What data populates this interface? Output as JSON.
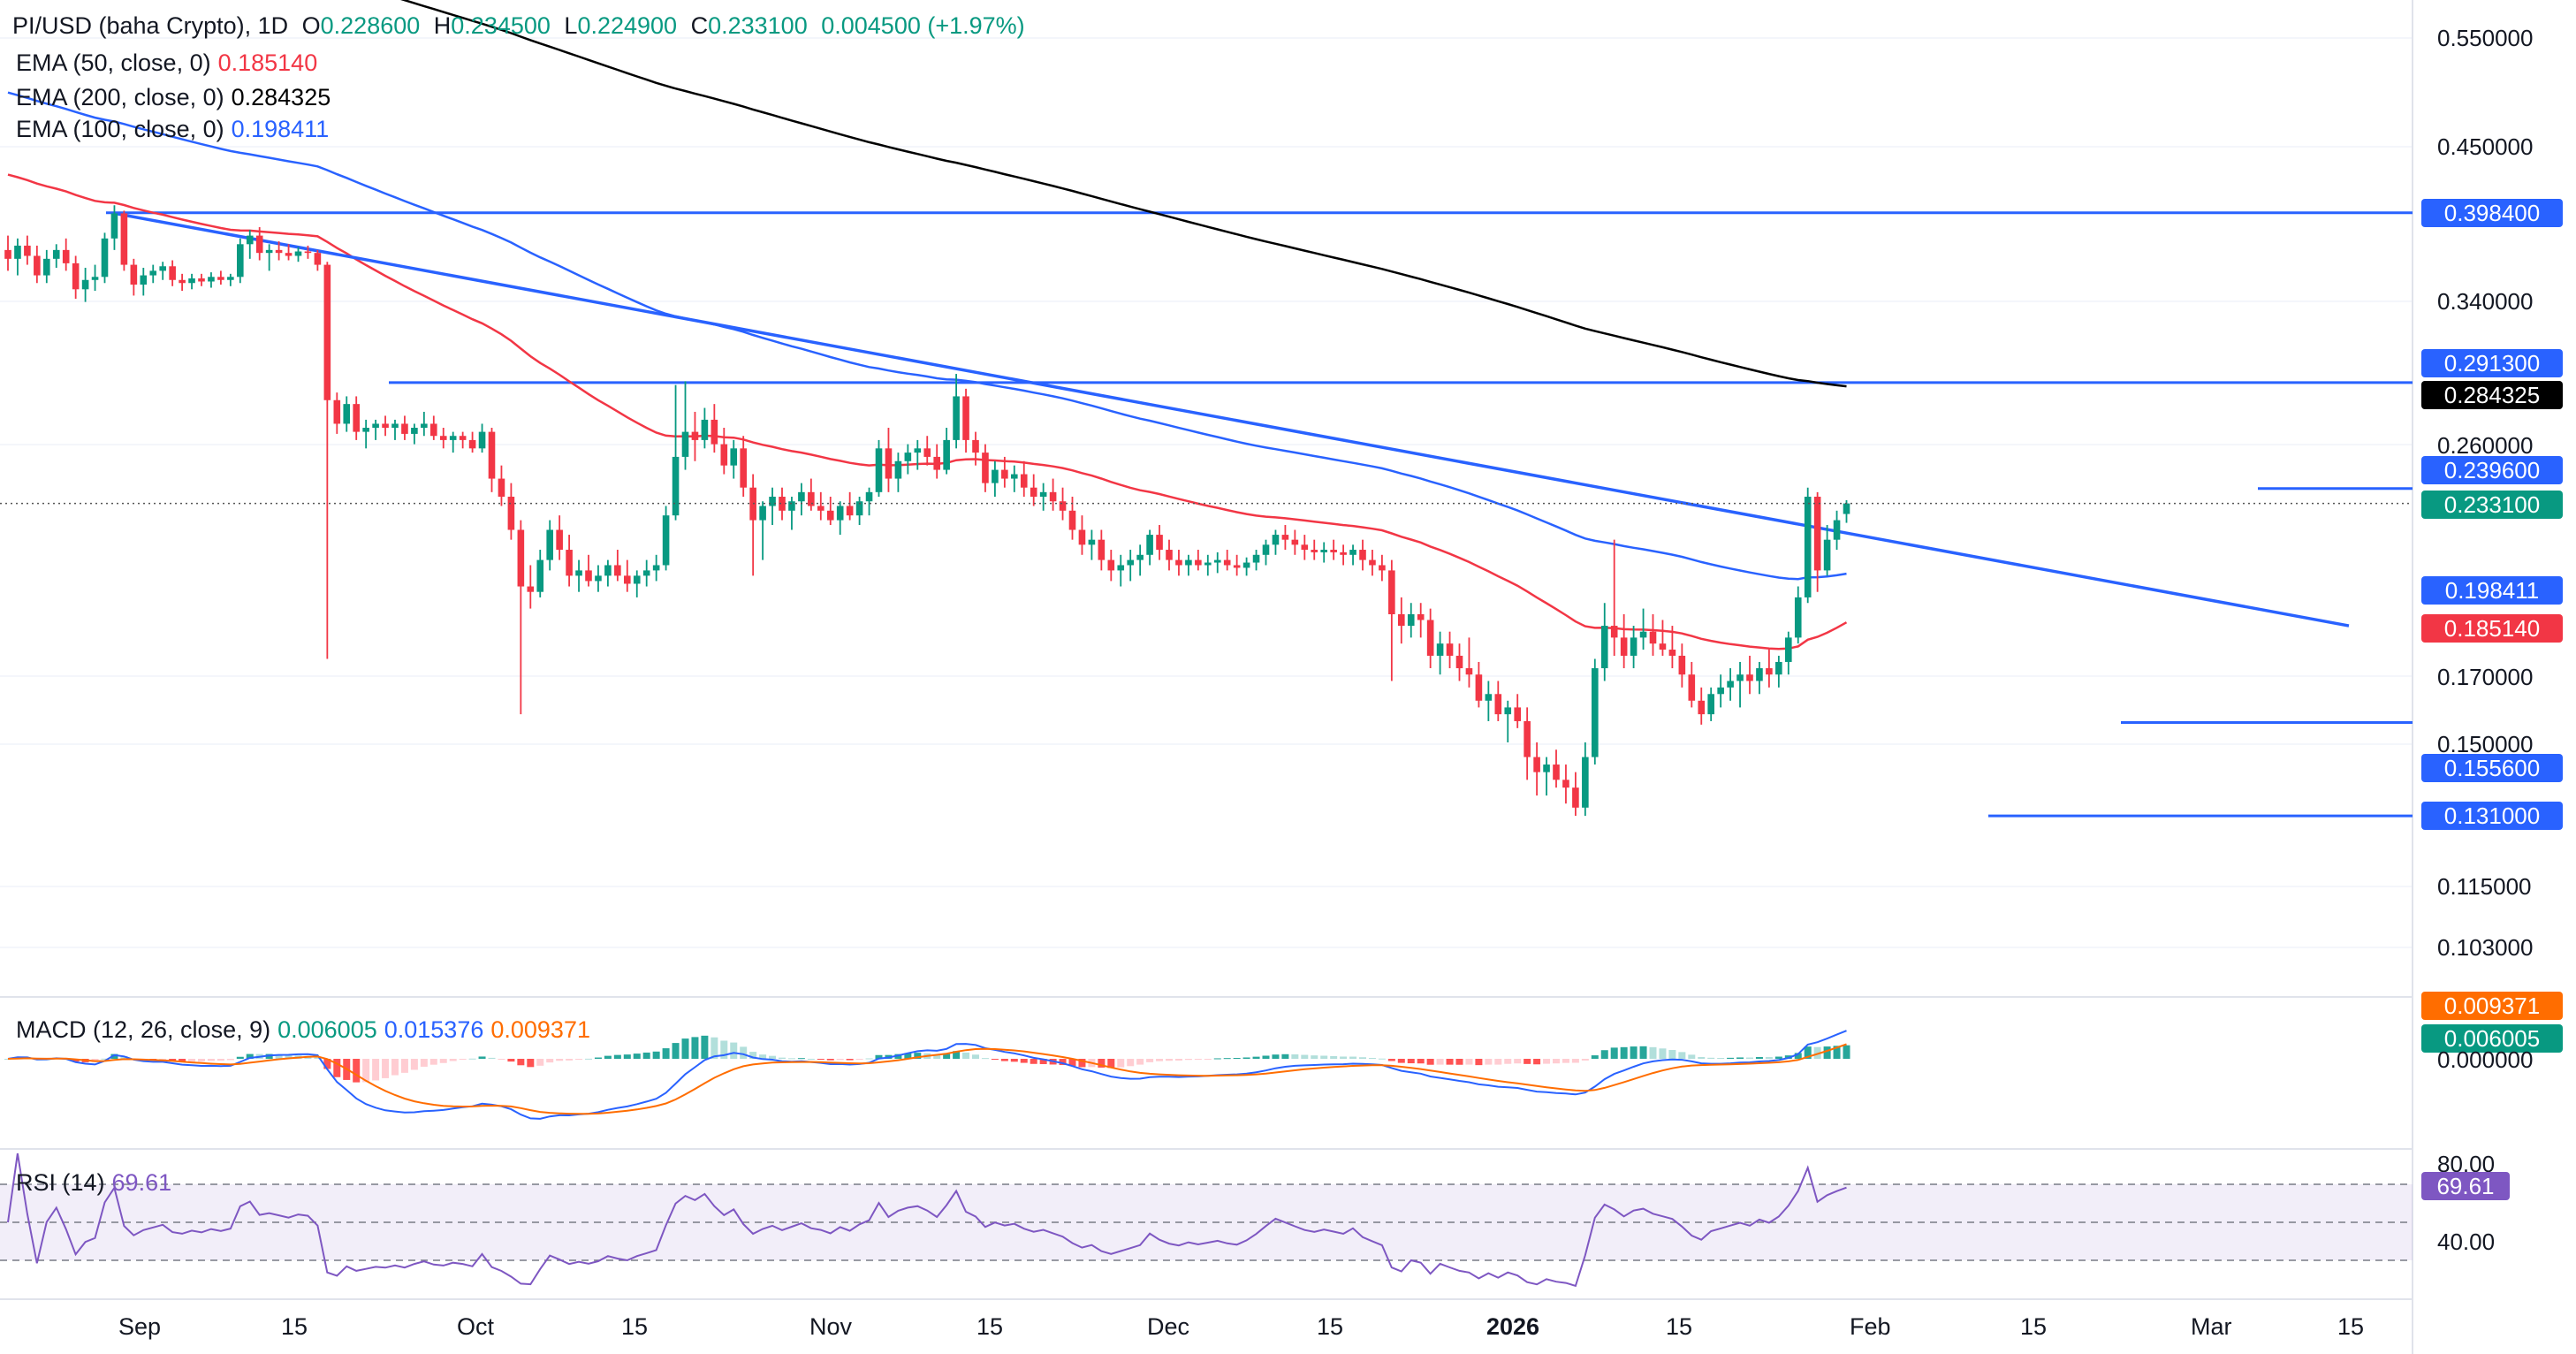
{
  "header": {
    "symbol": "PI/USD (baha Crypto), 1D",
    "open_label": "O",
    "open": "0.228600",
    "high_label": "H",
    "high": "0.234500",
    "low_label": "L",
    "low": "0.224900",
    "close_label": "C",
    "close": "0.233100",
    "change": "0.004500 (+1.97%)"
  },
  "legend": {
    "ema50": {
      "label": "EMA (50, close, 0)",
      "value": "0.185140",
      "color": "#f23645"
    },
    "ema200": {
      "label": "EMA (200, close, 0)",
      "value": "0.284325",
      "color": "#000000"
    },
    "ema100": {
      "label": "EMA (100, close, 0)",
      "value": "0.198411",
      "color": "#2962ff"
    },
    "macd": {
      "label": "MACD (12, 26, close, 9)",
      "hist": "0.006005",
      "macd": "0.015376",
      "signal": "0.009371"
    },
    "rsi": {
      "label": "RSI (14)",
      "value": "69.61"
    }
  },
  "colors": {
    "up": "#089981",
    "down": "#f23645",
    "level": "#2962ff",
    "ema50": "#f23645",
    "ema100": "#2962ff",
    "ema200": "#000000",
    "macd": "#2962ff",
    "signal": "#ff6d00",
    "rsi": "#7e57c2"
  },
  "price_axis": [
    "0.550000",
    "0.450000",
    "0.340000",
    "0.260000",
    "0.170000",
    "0.150000",
    "0.115000",
    "0.103000"
  ],
  "price_tags": {
    "r1": "0.398400",
    "r2": "0.291300",
    "ema200": "0.284325",
    "r3": "0.239600",
    "last": "0.233100",
    "ema100": "0.198411",
    "ema50": "0.185140",
    "s1": "0.155600",
    "s2": "0.131000"
  },
  "macd_axis": {
    "tag_signal": "0.009371",
    "tag_hist": "0.006005",
    "zero": "0.000000"
  },
  "rsi_axis": {
    "top": "80.00",
    "tag": "69.61",
    "bottom": "40.00"
  },
  "time_axis": {
    "labels": [
      "Sep",
      "15",
      "Oct",
      "15",
      "Nov",
      "15",
      "Dec",
      "15",
      "2026",
      "15",
      "Feb",
      "15",
      "Mar",
      "15"
    ],
    "bold_label": "2026"
  },
  "chart_data": {
    "type": "candlestick",
    "title": "PI/USD (baha Crypto), 1D",
    "scale": "log",
    "ylim": [
      0.095,
      0.58
    ],
    "x_range": [
      "2025-08-28",
      "2026-03-23"
    ],
    "candles_ohlc": [
      [
        0.372,
        0.382,
        0.358,
        0.366
      ],
      [
        0.366,
        0.38,
        0.355,
        0.375
      ],
      [
        0.375,
        0.382,
        0.362,
        0.368
      ],
      [
        0.368,
        0.375,
        0.35,
        0.355
      ],
      [
        0.355,
        0.372,
        0.35,
        0.366
      ],
      [
        0.366,
        0.376,
        0.36,
        0.372
      ],
      [
        0.372,
        0.38,
        0.358,
        0.363
      ],
      [
        0.363,
        0.368,
        0.34,
        0.346
      ],
      [
        0.346,
        0.36,
        0.338,
        0.352
      ],
      [
        0.352,
        0.362,
        0.345,
        0.354
      ],
      [
        0.354,
        0.384,
        0.35,
        0.38
      ],
      [
        0.38,
        0.404,
        0.372,
        0.398
      ],
      [
        0.398,
        0.4,
        0.358,
        0.362
      ],
      [
        0.362,
        0.366,
        0.342,
        0.349
      ],
      [
        0.349,
        0.36,
        0.342,
        0.355
      ],
      [
        0.355,
        0.362,
        0.35,
        0.358
      ],
      [
        0.358,
        0.364,
        0.352,
        0.361
      ],
      [
        0.361,
        0.365,
        0.348,
        0.352
      ],
      [
        0.352,
        0.356,
        0.345,
        0.35
      ],
      [
        0.35,
        0.356,
        0.346,
        0.353
      ],
      [
        0.353,
        0.356,
        0.348,
        0.351
      ],
      [
        0.351,
        0.357,
        0.347,
        0.354
      ],
      [
        0.354,
        0.358,
        0.349,
        0.352
      ],
      [
        0.352,
        0.356,
        0.348,
        0.354
      ],
      [
        0.354,
        0.38,
        0.35,
        0.376
      ],
      [
        0.376,
        0.386,
        0.366,
        0.382
      ],
      [
        0.382,
        0.388,
        0.365,
        0.37
      ],
      [
        0.37,
        0.376,
        0.358,
        0.372
      ],
      [
        0.372,
        0.378,
        0.365,
        0.37
      ],
      [
        0.37,
        0.376,
        0.365,
        0.368
      ],
      [
        0.368,
        0.374,
        0.364,
        0.371
      ],
      [
        0.371,
        0.375,
        0.366,
        0.37
      ],
      [
        0.37,
        0.372,
        0.358,
        0.362
      ],
      [
        0.362,
        0.364,
        0.175,
        0.282
      ],
      [
        0.282,
        0.286,
        0.265,
        0.27
      ],
      [
        0.27,
        0.284,
        0.266,
        0.28
      ],
      [
        0.28,
        0.284,
        0.262,
        0.266
      ],
      [
        0.266,
        0.272,
        0.258,
        0.268
      ],
      [
        0.268,
        0.272,
        0.262,
        0.27
      ],
      [
        0.27,
        0.274,
        0.264,
        0.268
      ],
      [
        0.268,
        0.272,
        0.262,
        0.27
      ],
      [
        0.27,
        0.274,
        0.262,
        0.265
      ],
      [
        0.265,
        0.27,
        0.26,
        0.268
      ],
      [
        0.268,
        0.276,
        0.264,
        0.27
      ],
      [
        0.27,
        0.274,
        0.262,
        0.264
      ],
      [
        0.264,
        0.268,
        0.258,
        0.262
      ],
      [
        0.262,
        0.266,
        0.256,
        0.264
      ],
      [
        0.264,
        0.266,
        0.258,
        0.262
      ],
      [
        0.262,
        0.266,
        0.256,
        0.258
      ],
      [
        0.258,
        0.27,
        0.256,
        0.266
      ],
      [
        0.266,
        0.268,
        0.238,
        0.244
      ],
      [
        0.244,
        0.25,
        0.232,
        0.236
      ],
      [
        0.236,
        0.242,
        0.218,
        0.222
      ],
      [
        0.222,
        0.226,
        0.158,
        0.2
      ],
      [
        0.2,
        0.208,
        0.192,
        0.198
      ],
      [
        0.198,
        0.214,
        0.196,
        0.21
      ],
      [
        0.21,
        0.226,
        0.206,
        0.222
      ],
      [
        0.222,
        0.228,
        0.21,
        0.214
      ],
      [
        0.214,
        0.22,
        0.2,
        0.204
      ],
      [
        0.204,
        0.21,
        0.198,
        0.206
      ],
      [
        0.206,
        0.212,
        0.2,
        0.202
      ],
      [
        0.202,
        0.208,
        0.198,
        0.204
      ],
      [
        0.204,
        0.21,
        0.2,
        0.208
      ],
      [
        0.208,
        0.214,
        0.202,
        0.204
      ],
      [
        0.204,
        0.21,
        0.198,
        0.201
      ],
      [
        0.201,
        0.206,
        0.196,
        0.204
      ],
      [
        0.204,
        0.21,
        0.2,
        0.206
      ],
      [
        0.206,
        0.212,
        0.202,
        0.208
      ],
      [
        0.208,
        0.232,
        0.206,
        0.228
      ],
      [
        0.228,
        0.29,
        0.226,
        0.254
      ],
      [
        0.254,
        0.292,
        0.248,
        0.266
      ],
      [
        0.266,
        0.276,
        0.252,
        0.262
      ],
      [
        0.262,
        0.278,
        0.258,
        0.272
      ],
      [
        0.272,
        0.28,
        0.256,
        0.26
      ],
      [
        0.26,
        0.268,
        0.246,
        0.25
      ],
      [
        0.25,
        0.262,
        0.244,
        0.258
      ],
      [
        0.258,
        0.264,
        0.236,
        0.24
      ],
      [
        0.24,
        0.246,
        0.204,
        0.226
      ],
      [
        0.226,
        0.234,
        0.21,
        0.232
      ],
      [
        0.232,
        0.24,
        0.224,
        0.236
      ],
      [
        0.236,
        0.24,
        0.226,
        0.23
      ],
      [
        0.23,
        0.236,
        0.222,
        0.234
      ],
      [
        0.234,
        0.242,
        0.228,
        0.238
      ],
      [
        0.238,
        0.244,
        0.23,
        0.232
      ],
      [
        0.232,
        0.238,
        0.226,
        0.23
      ],
      [
        0.23,
        0.236,
        0.224,
        0.226
      ],
      [
        0.226,
        0.234,
        0.22,
        0.232
      ],
      [
        0.232,
        0.238,
        0.226,
        0.228
      ],
      [
        0.228,
        0.236,
        0.224,
        0.234
      ],
      [
        0.234,
        0.24,
        0.228,
        0.238
      ],
      [
        0.238,
        0.262,
        0.236,
        0.258
      ],
      [
        0.258,
        0.268,
        0.238,
        0.244
      ],
      [
        0.244,
        0.256,
        0.238,
        0.252
      ],
      [
        0.252,
        0.26,
        0.246,
        0.256
      ],
      [
        0.256,
        0.262,
        0.248,
        0.258
      ],
      [
        0.258,
        0.264,
        0.25,
        0.254
      ],
      [
        0.254,
        0.26,
        0.244,
        0.248
      ],
      [
        0.248,
        0.268,
        0.246,
        0.262
      ],
      [
        0.262,
        0.296,
        0.258,
        0.284
      ],
      [
        0.284,
        0.288,
        0.256,
        0.262
      ],
      [
        0.262,
        0.266,
        0.25,
        0.256
      ],
      [
        0.256,
        0.26,
        0.238,
        0.242
      ],
      [
        0.242,
        0.252,
        0.236,
        0.248
      ],
      [
        0.248,
        0.254,
        0.24,
        0.244
      ],
      [
        0.244,
        0.25,
        0.238,
        0.246
      ],
      [
        0.246,
        0.252,
        0.236,
        0.24
      ],
      [
        0.24,
        0.246,
        0.232,
        0.236
      ],
      [
        0.236,
        0.242,
        0.23,
        0.238
      ],
      [
        0.238,
        0.244,
        0.23,
        0.234
      ],
      [
        0.234,
        0.24,
        0.226,
        0.23
      ],
      [
        0.23,
        0.236,
        0.218,
        0.222
      ],
      [
        0.222,
        0.228,
        0.212,
        0.216
      ],
      [
        0.216,
        0.222,
        0.21,
        0.218
      ],
      [
        0.218,
        0.222,
        0.206,
        0.21
      ],
      [
        0.21,
        0.214,
        0.202,
        0.206
      ],
      [
        0.206,
        0.212,
        0.2,
        0.208
      ],
      [
        0.208,
        0.214,
        0.202,
        0.21
      ],
      [
        0.21,
        0.216,
        0.204,
        0.212
      ],
      [
        0.212,
        0.222,
        0.208,
        0.22
      ],
      [
        0.22,
        0.224,
        0.21,
        0.214
      ],
      [
        0.214,
        0.218,
        0.206,
        0.21
      ],
      [
        0.21,
        0.214,
        0.204,
        0.208
      ],
      [
        0.208,
        0.212,
        0.204,
        0.21
      ],
      [
        0.21,
        0.214,
        0.206,
        0.208
      ],
      [
        0.208,
        0.212,
        0.204,
        0.209
      ],
      [
        0.209,
        0.213,
        0.205,
        0.21
      ],
      [
        0.21,
        0.214,
        0.206,
        0.208
      ],
      [
        0.208,
        0.212,
        0.204,
        0.207
      ],
      [
        0.207,
        0.211,
        0.204,
        0.209
      ],
      [
        0.209,
        0.214,
        0.206,
        0.212
      ],
      [
        0.212,
        0.218,
        0.208,
        0.216
      ],
      [
        0.216,
        0.222,
        0.212,
        0.22
      ],
      [
        0.22,
        0.224,
        0.214,
        0.218
      ],
      [
        0.218,
        0.222,
        0.212,
        0.216
      ],
      [
        0.216,
        0.22,
        0.21,
        0.214
      ],
      [
        0.214,
        0.218,
        0.21,
        0.213
      ],
      [
        0.213,
        0.217,
        0.209,
        0.214
      ],
      [
        0.214,
        0.218,
        0.21,
        0.213
      ],
      [
        0.213,
        0.216,
        0.208,
        0.212
      ],
      [
        0.212,
        0.216,
        0.208,
        0.214
      ],
      [
        0.214,
        0.218,
        0.206,
        0.21
      ],
      [
        0.21,
        0.214,
        0.204,
        0.208
      ],
      [
        0.208,
        0.212,
        0.202,
        0.206
      ],
      [
        0.206,
        0.21,
        0.168,
        0.19
      ],
      [
        0.19,
        0.196,
        0.18,
        0.186
      ],
      [
        0.186,
        0.194,
        0.182,
        0.19
      ],
      [
        0.19,
        0.194,
        0.182,
        0.188
      ],
      [
        0.188,
        0.192,
        0.172,
        0.176
      ],
      [
        0.176,
        0.184,
        0.17,
        0.18
      ],
      [
        0.18,
        0.184,
        0.172,
        0.176
      ],
      [
        0.176,
        0.18,
        0.168,
        0.172
      ],
      [
        0.172,
        0.182,
        0.166,
        0.17
      ],
      [
        0.17,
        0.174,
        0.16,
        0.162
      ],
      [
        0.162,
        0.168,
        0.156,
        0.164
      ],
      [
        0.164,
        0.168,
        0.156,
        0.158
      ],
      [
        0.158,
        0.162,
        0.15,
        0.16
      ],
      [
        0.16,
        0.164,
        0.154,
        0.156
      ],
      [
        0.156,
        0.16,
        0.14,
        0.146
      ],
      [
        0.146,
        0.15,
        0.136,
        0.142
      ],
      [
        0.142,
        0.146,
        0.136,
        0.144
      ],
      [
        0.144,
        0.148,
        0.138,
        0.14
      ],
      [
        0.14,
        0.144,
        0.134,
        0.138
      ],
      [
        0.138,
        0.142,
        0.131,
        0.133
      ],
      [
        0.133,
        0.15,
        0.131,
        0.146
      ],
      [
        0.146,
        0.175,
        0.144,
        0.172
      ],
      [
        0.172,
        0.194,
        0.168,
        0.186
      ],
      [
        0.186,
        0.218,
        0.176,
        0.182
      ],
      [
        0.182,
        0.19,
        0.172,
        0.176
      ],
      [
        0.176,
        0.186,
        0.172,
        0.182
      ],
      [
        0.182,
        0.192,
        0.178,
        0.184
      ],
      [
        0.184,
        0.19,
        0.176,
        0.18
      ],
      [
        0.18,
        0.188,
        0.176,
        0.178
      ],
      [
        0.178,
        0.186,
        0.172,
        0.176
      ],
      [
        0.176,
        0.18,
        0.166,
        0.17
      ],
      [
        0.17,
        0.174,
        0.16,
        0.162
      ],
      [
        0.162,
        0.166,
        0.155,
        0.158
      ],
      [
        0.158,
        0.166,
        0.156,
        0.164
      ],
      [
        0.164,
        0.17,
        0.16,
        0.166
      ],
      [
        0.166,
        0.172,
        0.162,
        0.168
      ],
      [
        0.168,
        0.174,
        0.16,
        0.17
      ],
      [
        0.17,
        0.176,
        0.164,
        0.168
      ],
      [
        0.168,
        0.174,
        0.164,
        0.172
      ],
      [
        0.172,
        0.178,
        0.166,
        0.17
      ],
      [
        0.17,
        0.176,
        0.166,
        0.174
      ],
      [
        0.174,
        0.184,
        0.17,
        0.182
      ],
      [
        0.182,
        0.2,
        0.18,
        0.196
      ],
      [
        0.196,
        0.24,
        0.194,
        0.236
      ],
      [
        0.236,
        0.238,
        0.198,
        0.206
      ],
      [
        0.206,
        0.224,
        0.204,
        0.218
      ],
      [
        0.218,
        0.23,
        0.214,
        0.226
      ],
      [
        0.2286,
        0.2345,
        0.2249,
        0.2331
      ]
    ],
    "horizontal_levels": [
      0.3984,
      0.2913,
      0.2396,
      0.1556,
      0.131
    ],
    "trendline": {
      "from": [
        "2025-08-31",
        0.398
      ],
      "to": [
        "2026-03-11",
        0.186
      ]
    },
    "ema200_last": 0.284325,
    "ema100_last": 0.198411,
    "ema50_last": 0.18514,
    "macd_last": {
      "histogram": 0.006005,
      "macd": 0.015376,
      "signal": 0.009371
    },
    "rsi_last": 69.61,
    "rsi_levels": [
      70,
      50,
      30
    ]
  }
}
